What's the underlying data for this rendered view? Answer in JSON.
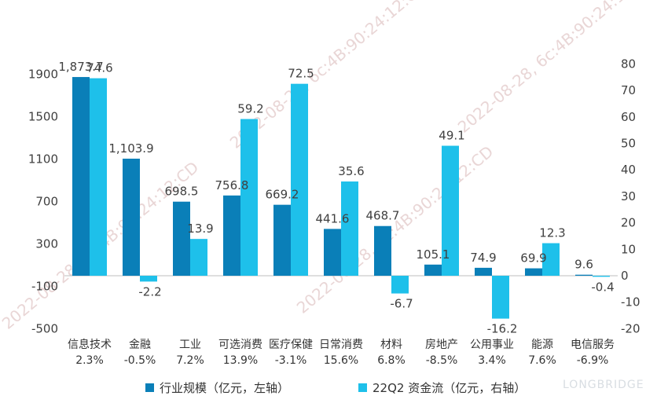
{
  "chart_data": {
    "type": "bar",
    "categories": [
      "信息技术",
      "金融",
      "工业",
      "可选消费",
      "医疗保健",
      "日常消费",
      "材料",
      "房地产",
      "公用事业",
      "能源",
      "电信服务"
    ],
    "category_notes": [
      "2.3%",
      "-0.5%",
      "7.2%",
      "13.9%",
      "-3.1%",
      "15.6%",
      "6.8%",
      "-8.5%",
      "3.4%",
      "7.6%",
      "-6.9%"
    ],
    "series": [
      {
        "name": "行业规模（亿元，左轴）",
        "axis": "left",
        "color": "#0a7fb8",
        "values": [
          1873.7,
          1103.9,
          698.5,
          756.8,
          669.2,
          441.6,
          468.7,
          105.1,
          74.9,
          69.9,
          9.6
        ],
        "labels": [
          "1,873.7",
          "1,103.9",
          "698.5",
          "756.8",
          "669.2",
          "441.6",
          "468.7",
          "105.1",
          "74.9",
          "69.9",
          "9.6"
        ]
      },
      {
        "name": "22Q2 资金流（亿元，右轴）",
        "axis": "right",
        "color": "#1ec0ea",
        "values": [
          74.6,
          -2.2,
          13.9,
          59.2,
          72.5,
          35.6,
          -6.7,
          49.1,
          -16.2,
          12.3,
          -0.4
        ],
        "labels": [
          "74.6",
          "-2.2",
          "13.9",
          "59.2",
          "72.5",
          "35.6",
          "-6.7",
          "49.1",
          "-16.2",
          "12.3",
          "-0.4"
        ]
      }
    ],
    "y_left": {
      "ticks": [
        1900,
        1500,
        1100,
        700,
        300,
        -100,
        -500
      ],
      "tick_labels": [
        "1900",
        "1500",
        "1100",
        "700",
        "300",
        "-100",
        "-500"
      ],
      "ylim": [
        -500,
        1900
      ]
    },
    "y_right": {
      "ticks": [
        80,
        70,
        60,
        50,
        40,
        30,
        20,
        10,
        0,
        -10,
        -20
      ],
      "tick_labels": [
        "80",
        "70",
        "60",
        "50",
        "40",
        "30",
        "20",
        "10",
        "0",
        "-10",
        "-20"
      ],
      "ylim": [
        -20,
        80
      ]
    },
    "legend_position": "bottom",
    "grid": false
  },
  "watermark": {
    "text": "2022-08-28, 6c:4B:90:24:12:CD",
    "brand": "LONGBRIDGE"
  }
}
